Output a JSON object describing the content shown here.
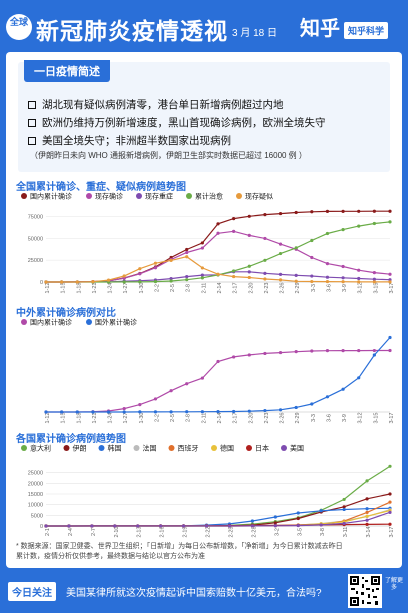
{
  "header": {
    "badge": "全球",
    "title": "新冠肺炎疫情透视",
    "date": "3 月 18 日",
    "brand": "知乎",
    "brand_tag": "知乎科学"
  },
  "summary": {
    "title": "一日疫情简述",
    "bullets": [
      "湖北现有疑似病例清零，港台单日新增病例超过内地",
      "欧洲仍维持万例新增速度，黑山首现确诊病例，欧洲全境失守",
      "美国全境失守；非洲超半数国家出现病例"
    ],
    "note": "（伊朗昨日未向 WHO 通报新增病例，伊朗卫生部实时数据已超过 16000 例 ）"
  },
  "footer": {
    "source": "* 数据来源：国家卫健委、世界卫生组织；「日新增」为每日公布新增数，「净新增」为今日累计数减去昨日累计数，疫情分析仅供参考，最终数据与结论以官方公布为准"
  },
  "bottom": {
    "today_label": "今日关注",
    "today_text": "美国某律所就这次疫情起诉中国索赔数十亿美元，合法吗?",
    "side_text": "了解更多"
  },
  "chart_data": [
    {
      "type": "line",
      "title": "全国累计确诊、重症、疑似病例趋势图",
      "x": [
        "1-12",
        "1-15",
        "1-18",
        "1-21",
        "1-24",
        "1-27",
        "1-30",
        "2-2",
        "2-5",
        "2-8",
        "2-11",
        "2-14",
        "2-17",
        "2-20",
        "2-23",
        "2-26",
        "2-29",
        "3-3",
        "3-6",
        "3-9",
        "3-12",
        "3-15",
        "3-17"
      ],
      "ylim": [
        0,
        80000
      ],
      "yticks": [
        0,
        25000,
        50000,
        75000
      ],
      "series": [
        {
          "name": "国内累计确诊",
          "color": "#8a1a1a",
          "values": [
            41,
            41,
            62,
            440,
            1287,
            4515,
            9692,
            17205,
            28018,
            37198,
            44653,
            66492,
            72436,
            75077,
            77041,
            78190,
            79394,
            80270,
            80711,
            80754,
            80813,
            80860,
            80894
          ]
        },
        {
          "name": "现存确诊",
          "color": "#b04aa8",
          "values": [
            41,
            41,
            60,
            420,
            1220,
            4400,
            9400,
            16300,
            25800,
            33700,
            38800,
            55700,
            57900,
            53300,
            49800,
            43300,
            37400,
            28000,
            21000,
            17700,
            13500,
            10700,
            8900
          ]
        },
        {
          "name": "现存重症",
          "color": "#7e4cb0",
          "values": [
            0,
            0,
            5,
            60,
            240,
            970,
            1500,
            2300,
            3900,
            6200,
            7900,
            8200,
            11700,
            11600,
            9900,
            8700,
            7600,
            6800,
            5500,
            4800,
            4000,
            3200,
            2600
          ]
        },
        {
          "name": "累计治愈",
          "color": "#6aac47",
          "values": [
            0,
            0,
            0,
            20,
            40,
            60,
            170,
            470,
            1150,
            2650,
            4750,
            8100,
            12600,
            18000,
            24800,
            32500,
            39000,
            47400,
            55400,
            59900,
            63900,
            66900,
            68700
          ]
        },
        {
          "name": "现存疑似",
          "color": "#e69a3c",
          "values": [
            0,
            0,
            0,
            390,
            2200,
            6900,
            15200,
            21500,
            24700,
            28900,
            16100,
            8900,
            6200,
            5200,
            3400,
            2400,
            850,
            520,
            480,
            350,
            130,
            135,
            110
          ]
        }
      ]
    },
    {
      "type": "line",
      "title": "中外累计确诊病例对比",
      "x": [
        "1-12",
        "1-15",
        "1-18",
        "1-21",
        "1-24",
        "1-27",
        "1-30",
        "2-2",
        "2-5",
        "2-8",
        "2-11",
        "2-14",
        "2-17",
        "2-20",
        "2-23",
        "2-26",
        "2-29",
        "3-3",
        "3-6",
        "3-9",
        "3-12",
        "3-15",
        "3-17"
      ],
      "ylim": [
        0,
        100000
      ],
      "series": [
        {
          "name": "国内累计确诊",
          "color": "#b04aa8",
          "values": [
            41,
            41,
            62,
            440,
            1287,
            4515,
            9692,
            17205,
            28018,
            37198,
            44653,
            66492,
            72436,
            75077,
            77041,
            78190,
            79394,
            80270,
            80711,
            80754,
            80813,
            80860,
            80894
          ]
        },
        {
          "name": "国外累计确诊",
          "color": "#2a6fd8",
          "values": [
            0,
            0,
            0,
            6,
            30,
            60,
            120,
            160,
            200,
            300,
            400,
            500,
            700,
            1100,
            1900,
            2900,
            6000,
            10500,
            20000,
            30000,
            45000,
            75000,
            98000
          ]
        }
      ]
    },
    {
      "type": "line",
      "title": "各国累计确诊病例趋势图",
      "x": [
        "2-1",
        "2-4",
        "2-7",
        "2-10",
        "2-13",
        "2-16",
        "2-19",
        "2-22",
        "2-25",
        "2-28",
        "3-2",
        "3-5",
        "3-8",
        "3-11",
        "3-14",
        "3-17"
      ],
      "ylim": [
        0,
        30000
      ],
      "yticks": [
        0,
        5000,
        10000,
        15000,
        20000,
        25000
      ],
      "series": [
        {
          "name": "意大利",
          "color": "#6aac47",
          "values": [
            2,
            3,
            3,
            3,
            3,
            3,
            3,
            76,
            322,
            888,
            2036,
            3858,
            7375,
            12462,
            21157,
            27980
          ]
        },
        {
          "name": "伊朗",
          "color": "#8a1a1a",
          "values": [
            0,
            0,
            0,
            0,
            0,
            0,
            2,
            28,
            95,
            388,
            1501,
            3513,
            6566,
            9000,
            12729,
            14991
          ]
        },
        {
          "name": "韩国",
          "color": "#2a6fd8",
          "values": [
            12,
            16,
            24,
            27,
            28,
            29,
            51,
            433,
            977,
            2337,
            4212,
            6088,
            7134,
            7755,
            8086,
            8320
          ]
        },
        {
          "name": "法国",
          "color": "#bbbbbb",
          "values": [
            6,
            6,
            6,
            11,
            11,
            12,
            12,
            12,
            14,
            57,
            191,
            423,
            1126,
            2281,
            4469,
            7652
          ]
        },
        {
          "name": "西班牙",
          "color": "#e0702c",
          "values": [
            1,
            1,
            1,
            2,
            2,
            2,
            2,
            2,
            12,
            32,
            120,
            282,
            673,
            2277,
            6391,
            11178
          ]
        },
        {
          "name": "德国",
          "color": "#e8c13a",
          "values": [
            8,
            12,
            13,
            14,
            16,
            16,
            16,
            16,
            18,
            53,
            150,
            482,
            1040,
            1908,
            4585,
            7272
          ]
        },
        {
          "name": "日本",
          "color": "#b0201e",
          "values": [
            20,
            20,
            25,
            26,
            28,
            53,
            73,
            105,
            170,
            228,
            274,
            360,
            502,
            639,
            773,
            829
          ]
        },
        {
          "name": "美国",
          "color": "#7e4cb0",
          "values": [
            8,
            11,
            12,
            12,
            15,
            15,
            15,
            15,
            15,
            62,
            100,
            200,
            500,
            1200,
            2700,
            6400
          ]
        }
      ]
    }
  ]
}
